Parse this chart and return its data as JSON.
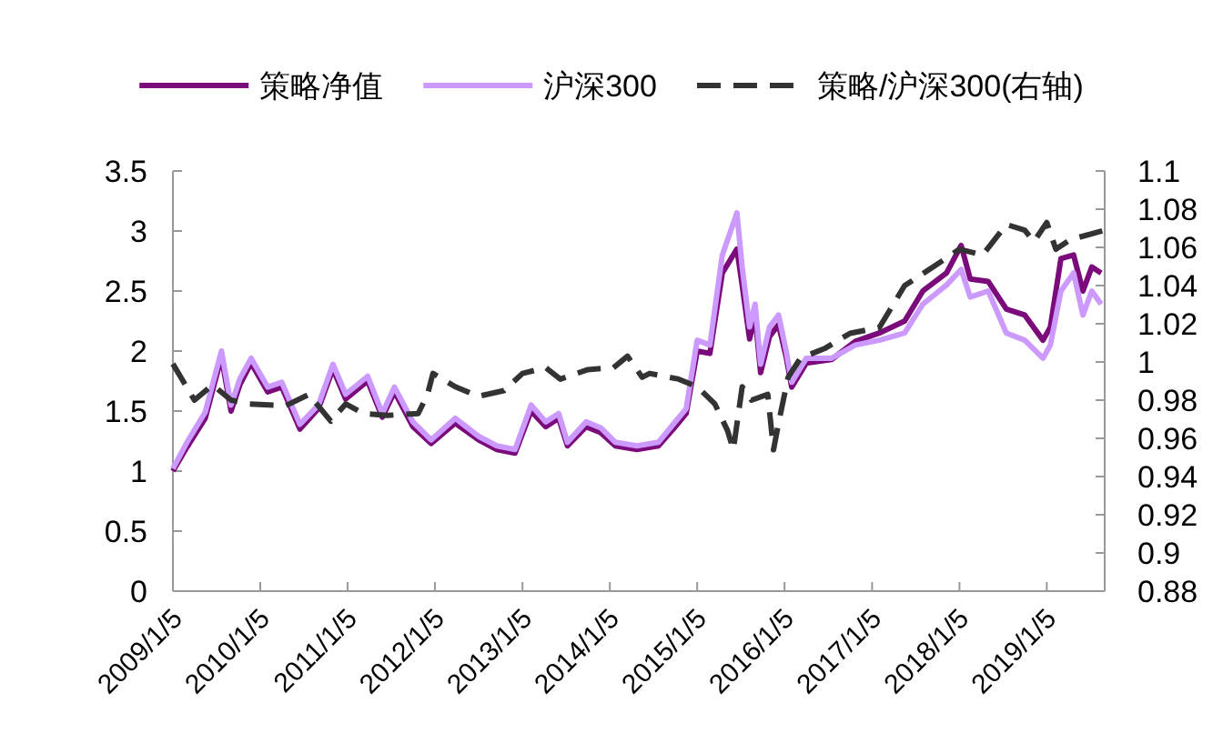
{
  "chart_data": {
    "type": "line",
    "legend": "top",
    "x": [
      "2009-01-05",
      "2009-03-05",
      "2009-05-20",
      "2009-07-27",
      "2009-09-05",
      "2009-10-12",
      "2009-11-28",
      "2010-02-05",
      "2010-04-05",
      "2010-06-20",
      "2010-09-05",
      "2010-11-05",
      "2010-12-28",
      "2011-03-30",
      "2011-05-30",
      "2011-07-20",
      "2011-10-05",
      "2011-12-20",
      "2012-03-30",
      "2012-07-05",
      "2012-09-20",
      "2012-12-05",
      "2013-02-10",
      "2013-04-12",
      "2013-06-05",
      "2013-07-12",
      "2013-09-28",
      "2013-11-28",
      "2014-01-28",
      "2014-04-28",
      "2014-07-27",
      "2014-09-27",
      "2014-11-20",
      "2015-01-05",
      "2015-02-27",
      "2015-04-20",
      "2015-06-20",
      "2015-07-12",
      "2015-08-12",
      "2015-09-04",
      "2015-09-27",
      "2015-11-03",
      "2015-12-11",
      "2016-01-12",
      "2016-02-04",
      "2016-04-05",
      "2016-07-20",
      "2016-10-27",
      "2017-02-04",
      "2017-05-21",
      "2017-08-05",
      "2017-11-12",
      "2018-01-12",
      "2018-02-19",
      "2018-05-05",
      "2018-07-20",
      "2018-10-05",
      "2018-12-20",
      "2019-01-20",
      "2019-03-05",
      "2019-04-27",
      "2019-06-05",
      "2019-07-12",
      "2019-08-20"
    ],
    "series": [
      {
        "name": "策略净值",
        "color": "#7b0a7b",
        "line_style": "solid",
        "values": [
          1.0,
          1.2,
          1.44,
          1.95,
          1.5,
          1.72,
          1.9,
          1.66,
          1.7,
          1.35,
          1.52,
          1.85,
          1.6,
          1.75,
          1.45,
          1.66,
          1.37,
          1.23,
          1.4,
          1.26,
          1.18,
          1.15,
          1.5,
          1.37,
          1.44,
          1.21,
          1.37,
          1.32,
          1.21,
          1.18,
          1.21,
          1.35,
          1.48,
          2.0,
          1.98,
          2.65,
          2.85,
          2.55,
          2.1,
          2.3,
          1.82,
          2.12,
          2.22,
          1.95,
          1.7,
          1.9,
          1.93,
          2.08,
          2.15,
          2.25,
          2.5,
          2.65,
          2.88,
          2.6,
          2.58,
          2.35,
          2.3,
          2.09,
          2.2,
          2.77,
          2.8,
          2.5,
          2.7,
          2.65
        ]
      },
      {
        "name": "沪深300",
        "color": "#cc99ff",
        "line_style": "solid",
        "values": [
          1.02,
          1.24,
          1.49,
          2.0,
          1.55,
          1.77,
          1.94,
          1.7,
          1.74,
          1.39,
          1.55,
          1.89,
          1.64,
          1.79,
          1.48,
          1.7,
          1.41,
          1.26,
          1.44,
          1.29,
          1.21,
          1.18,
          1.55,
          1.41,
          1.48,
          1.24,
          1.41,
          1.36,
          1.24,
          1.21,
          1.24,
          1.39,
          1.52,
          2.09,
          2.05,
          2.8,
          3.15,
          2.7,
          2.2,
          2.39,
          1.89,
          2.2,
          2.3,
          2.0,
          1.74,
          1.94,
          1.94,
          2.05,
          2.09,
          2.15,
          2.39,
          2.55,
          2.68,
          2.45,
          2.5,
          2.15,
          2.09,
          1.94,
          2.05,
          2.5,
          2.65,
          2.3,
          2.5,
          2.39
        ]
      },
      {
        "name": "策略/沪深300(右轴)",
        "color": "#333333",
        "line_style": "dashed",
        "axis": "y2",
        "x": [
          "2009-01-05",
          "2009-04-05",
          "2009-06-20",
          "2009-09-05",
          "2009-11-20",
          "2010-04-20",
          "2010-07-27",
          "2010-10-27",
          "2010-12-28",
          "2011-03-12",
          "2011-06-20",
          "2011-10-27",
          "2011-12-05",
          "2011-12-28",
          "2012-03-30",
          "2012-07-05",
          "2012-10-20",
          "2013-01-05",
          "2013-04-12",
          "2013-06-12",
          "2013-10-05",
          "2014-01-20",
          "2014-03-20",
          "2014-05-20",
          "2014-06-20",
          "2014-10-20",
          "2015-01-05",
          "2015-03-20",
          "2015-05-12",
          "2015-06-05",
          "2015-07-12",
          "2015-08-20",
          "2015-10-27",
          "2015-11-20",
          "2015-12-11",
          "2016-01-20",
          "2016-03-12",
          "2016-06-20",
          "2016-10-05",
          "2017-02-04",
          "2017-05-21",
          "2017-09-20",
          "2018-01-05",
          "2018-04-12",
          "2018-07-20",
          "2018-10-05",
          "2018-11-12",
          "2019-01-05",
          "2019-02-12",
          "2019-04-12",
          "2019-09-04"
        ],
        "values": [
          0.999,
          0.98,
          0.988,
          0.98,
          0.978,
          0.977,
          0.983,
          0.969,
          0.978,
          0.973,
          0.972,
          0.973,
          0.983,
          0.994,
          0.987,
          0.982,
          0.985,
          0.994,
          0.997,
          0.991,
          0.996,
          0.997,
          1.003,
          0.992,
          0.994,
          0.991,
          0.987,
          0.978,
          0.964,
          0.954,
          0.987,
          0.98,
          0.983,
          0.954,
          0.968,
          0.992,
          1.002,
          1.007,
          1.015,
          1.018,
          1.04,
          1.05,
          1.059,
          1.056,
          1.072,
          1.069,
          1.063,
          1.073,
          1.059,
          1.064,
          1.069
        ]
      }
    ],
    "xlim": [
      "2009-01-05",
      "2019-09-04"
    ],
    "xticks": [
      {
        "value": "2009-01-05",
        "label": "2009/1/5"
      },
      {
        "value": "2010-01-05",
        "label": "2010/1/5"
      },
      {
        "value": "2011-01-05",
        "label": "2011/1/5"
      },
      {
        "value": "2012-01-05",
        "label": "2012/1/5"
      },
      {
        "value": "2013-01-05",
        "label": "2013/1/5"
      },
      {
        "value": "2014-01-05",
        "label": "2014/1/5"
      },
      {
        "value": "2015-01-05",
        "label": "2015/1/5"
      },
      {
        "value": "2016-01-05",
        "label": "2016/1/5"
      },
      {
        "value": "2017-01-05",
        "label": "2017/1/5"
      },
      {
        "value": "2018-01-05",
        "label": "2018/1/5"
      },
      {
        "value": "2019-01-05",
        "label": "2019/1/5"
      }
    ],
    "ylim": [
      0,
      3.5
    ],
    "yticks": [
      0,
      0.5,
      1,
      1.5,
      2,
      2.5,
      3,
      3.5
    ],
    "y2lim": [
      0.88,
      1.1
    ],
    "y2ticks": [
      0.88,
      0.9,
      0.92,
      0.94,
      0.96,
      0.98,
      1,
      1.02,
      1.04,
      1.06,
      1.08,
      1.1
    ]
  }
}
